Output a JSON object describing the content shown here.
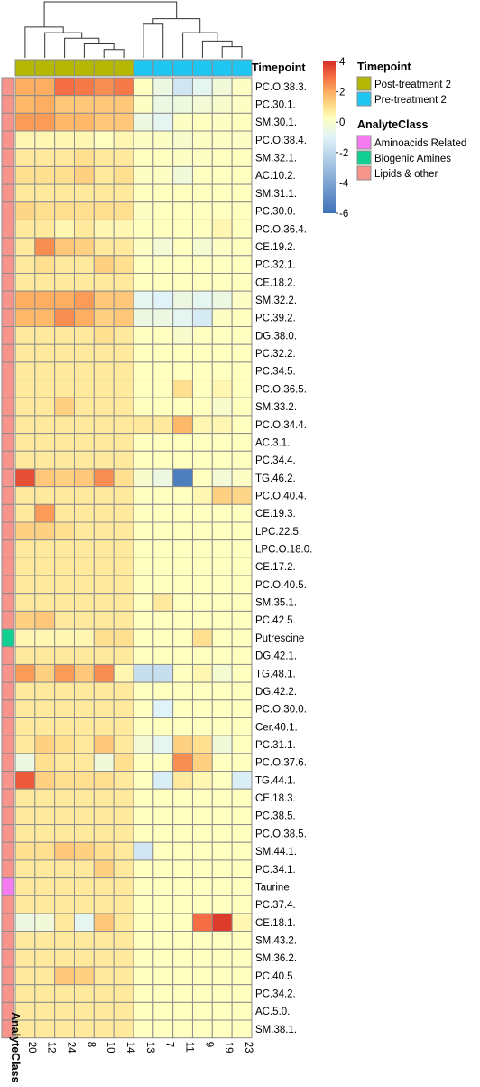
{
  "chart_data": {
    "type": "heatmap",
    "columns": [
      "20",
      "12",
      "24",
      "8",
      "10",
      "14",
      "13",
      "7",
      "11",
      "9",
      "19",
      "23"
    ],
    "rows": [
      "PC.O.38.3.",
      "PC.30.1.",
      "SM.30.1.",
      "PC.O.38.4.",
      "SM.32.1.",
      "AC.10.2.",
      "SM.31.1.",
      "PC.30.0.",
      "PC.O.36.4.",
      "CE.19.2.",
      "PC.32.1.",
      "CE.18.2.",
      "SM.32.2.",
      "PC.39.2.",
      "DG.38.0.",
      "PC.32.2.",
      "PC.34.5.",
      "PC.O.36.5.",
      "SM.33.2.",
      "PC.O.34.4.",
      "AC.3.1.",
      "PC.34.4.",
      "TG.46.2.",
      "PC.O.40.4.",
      "CE.19.3.",
      "LPC.22.5.",
      "LPC.O.18.0.",
      "CE.17.2.",
      "PC.O.40.5.",
      "SM.35.1.",
      "PC.42.5.",
      "Putrescine",
      "DG.42.1.",
      "TG.48.1.",
      "DG.42.2.",
      "PC.O.30.0.",
      "Cer.40.1.",
      "PC.31.1.",
      "PC.O.37.6.",
      "TG.44.1.",
      "CE.18.3.",
      "PC.38.5.",
      "PC.O.38.5.",
      "SM.44.1.",
      "PC.34.1.",
      "Taurine",
      "PC.37.4.",
      "CE.18.1.",
      "SM.43.2.",
      "SM.36.2.",
      "PC.40.5.",
      "PC.34.2.",
      "AC.5.0.",
      "SM.38.1."
    ],
    "values": [
      [
        2.0,
        2.0,
        3.0,
        2.8,
        2.5,
        2.8,
        0.3,
        -0.5,
        -1.5,
        -0.8,
        -0.3,
        0.2
      ],
      [
        1.8,
        2.0,
        1.5,
        1.5,
        1.5,
        1.5,
        0.2,
        -0.5,
        -0.4,
        -0.2,
        0.0,
        0.2
      ],
      [
        2.3,
        2.3,
        1.8,
        1.8,
        1.5,
        1.5,
        -0.5,
        -0.8,
        0.2,
        0.3,
        0.2,
        0.3
      ],
      [
        0.5,
        0.5,
        0.5,
        0.5,
        0.3,
        0.5,
        0.2,
        0.2,
        0.0,
        0.2,
        0.2,
        0.2
      ],
      [
        0.8,
        0.8,
        0.8,
        1.0,
        0.8,
        0.8,
        0.3,
        0.3,
        0.2,
        0.2,
        0.3,
        0.3
      ],
      [
        1.0,
        1.0,
        1.0,
        1.3,
        0.8,
        1.0,
        0.2,
        0.2,
        -0.3,
        0.3,
        0.3,
        0.3
      ],
      [
        0.8,
        0.8,
        0.8,
        0.8,
        0.8,
        0.8,
        0.3,
        0.3,
        0.3,
        0.3,
        0.3,
        0.3
      ],
      [
        1.2,
        1.0,
        1.0,
        1.0,
        1.0,
        1.0,
        0.2,
        0.3,
        0.3,
        0.3,
        0.3,
        0.3
      ],
      [
        0.8,
        0.8,
        0.5,
        0.8,
        0.5,
        0.5,
        0.3,
        0.3,
        0.3,
        0.3,
        0.5,
        0.3
      ],
      [
        0.8,
        2.5,
        1.5,
        1.3,
        0.8,
        0.8,
        0.2,
        -0.2,
        0.3,
        -0.1,
        0.2,
        0.3
      ],
      [
        0.8,
        1.0,
        0.8,
        0.8,
        1.3,
        1.0,
        0.3,
        0.3,
        0.3,
        0.3,
        0.3,
        0.3
      ],
      [
        0.8,
        0.8,
        0.8,
        0.8,
        0.8,
        0.8,
        0.3,
        0.3,
        0.3,
        0.3,
        0.3,
        0.3
      ],
      [
        2.0,
        2.0,
        2.0,
        2.3,
        1.5,
        1.5,
        -0.8,
        -1.0,
        -0.5,
        -0.8,
        -0.5,
        0.2
      ],
      [
        1.8,
        1.8,
        2.5,
        2.0,
        1.3,
        1.5,
        -0.5,
        -0.5,
        -0.8,
        -1.3,
        0.2,
        0.3
      ],
      [
        0.8,
        0.8,
        0.8,
        0.8,
        1.0,
        0.8,
        0.3,
        0.3,
        0.0,
        0.3,
        0.3,
        0.3
      ],
      [
        0.8,
        0.8,
        0.8,
        0.8,
        0.8,
        0.8,
        0.3,
        0.3,
        0.3,
        0.3,
        0.3,
        0.3
      ],
      [
        0.8,
        0.8,
        0.8,
        0.8,
        0.8,
        0.8,
        0.3,
        0.3,
        0.3,
        0.3,
        0.3,
        0.3
      ],
      [
        0.8,
        0.8,
        0.8,
        0.8,
        0.8,
        0.8,
        0.3,
        0.3,
        1.0,
        0.3,
        0.5,
        0.3
      ],
      [
        0.8,
        0.8,
        1.3,
        0.8,
        0.8,
        0.8,
        0.3,
        0.3,
        0.3,
        0.3,
        0.0,
        0.3
      ],
      [
        0.8,
        0.8,
        0.8,
        0.8,
        0.8,
        0.8,
        0.8,
        0.8,
        1.8,
        0.5,
        0.5,
        0.3
      ],
      [
        0.8,
        0.8,
        0.8,
        0.8,
        0.8,
        0.8,
        0.3,
        0.3,
        0.3,
        0.3,
        0.3,
        0.3
      ],
      [
        0.8,
        0.8,
        0.8,
        0.8,
        0.8,
        0.8,
        0.3,
        0.3,
        0.3,
        0.3,
        0.3,
        0.3
      ],
      [
        3.5,
        1.5,
        1.3,
        1.5,
        2.5,
        1.0,
        0.0,
        -0.5,
        -5.5,
        0.3,
        -0.2,
        0.2
      ],
      [
        0.8,
        0.8,
        0.8,
        0.8,
        0.8,
        0.8,
        0.3,
        0.3,
        0.3,
        0.5,
        1.3,
        1.2
      ],
      [
        0.8,
        2.3,
        0.8,
        0.8,
        0.8,
        0.8,
        0.3,
        0.3,
        0.3,
        0.3,
        0.3,
        0.3
      ],
      [
        1.3,
        1.3,
        1.0,
        0.8,
        0.8,
        0.8,
        0.3,
        0.3,
        0.3,
        0.3,
        0.3,
        0.3
      ],
      [
        0.8,
        0.8,
        0.8,
        0.8,
        0.8,
        0.8,
        0.3,
        0.3,
        0.3,
        0.3,
        0.3,
        0.3
      ],
      [
        0.8,
        0.8,
        0.8,
        0.8,
        0.8,
        0.8,
        0.3,
        0.3,
        0.3,
        0.3,
        0.3,
        0.3
      ],
      [
        0.8,
        0.8,
        0.8,
        0.8,
        0.8,
        0.8,
        0.3,
        0.3,
        0.3,
        0.3,
        0.3,
        0.3
      ],
      [
        0.8,
        0.8,
        0.8,
        0.8,
        0.8,
        0.8,
        0.3,
        0.8,
        0.3,
        0.3,
        0.3,
        0.3
      ],
      [
        1.3,
        1.5,
        0.8,
        0.8,
        0.8,
        0.8,
        0.3,
        0.3,
        0.3,
        0.3,
        0.3,
        0.3
      ],
      [
        0.5,
        0.5,
        0.5,
        0.5,
        1.0,
        1.0,
        0.3,
        0.3,
        0.3,
        1.0,
        0.3,
        0.3
      ],
      [
        0.8,
        0.8,
        0.8,
        0.8,
        0.8,
        0.8,
        0.3,
        0.3,
        0.3,
        0.3,
        0.3,
        0.3
      ],
      [
        2.3,
        1.3,
        2.3,
        1.5,
        2.5,
        0.5,
        -1.8,
        -1.8,
        0.3,
        0.5,
        -0.1,
        0.3
      ],
      [
        0.8,
        0.8,
        0.8,
        0.8,
        0.8,
        0.8,
        0.3,
        0.3,
        0.3,
        0.3,
        0.3,
        0.3
      ],
      [
        0.8,
        0.8,
        0.8,
        0.8,
        0.8,
        0.8,
        0.3,
        -1.0,
        0.3,
        0.3,
        0.3,
        0.3
      ],
      [
        0.8,
        0.8,
        0.8,
        0.8,
        0.8,
        0.8,
        0.3,
        0.3,
        0.3,
        0.3,
        0.3,
        0.3
      ],
      [
        0.8,
        1.3,
        1.0,
        0.8,
        1.5,
        0.8,
        -0.2,
        -0.8,
        1.3,
        1.0,
        -0.3,
        0.3
      ],
      [
        -0.5,
        1.0,
        0.8,
        0.8,
        -0.3,
        1.0,
        0.3,
        0.3,
        2.5,
        1.3,
        0.3,
        0.3
      ],
      [
        3.3,
        1.3,
        1.0,
        1.0,
        1.0,
        0.8,
        0.3,
        -1.2,
        0.8,
        0.5,
        0.3,
        -1.2
      ],
      [
        0.8,
        0.8,
        0.8,
        0.8,
        0.8,
        0.8,
        0.3,
        0.3,
        0.3,
        0.3,
        0.3,
        0.3
      ],
      [
        0.8,
        0.8,
        0.8,
        0.8,
        0.8,
        0.8,
        0.3,
        0.3,
        0.3,
        0.3,
        0.3,
        0.3
      ],
      [
        0.8,
        0.8,
        0.8,
        0.8,
        0.8,
        0.8,
        0.3,
        0.3,
        0.3,
        0.3,
        0.3,
        0.3
      ],
      [
        1.0,
        1.0,
        1.5,
        1.3,
        1.0,
        0.8,
        -1.5,
        0.3,
        0.3,
        0.3,
        0.3,
        0.3
      ],
      [
        0.8,
        0.8,
        0.8,
        0.8,
        1.3,
        0.8,
        0.3,
        0.3,
        0.3,
        0.3,
        0.3,
        0.3
      ],
      [
        0.8,
        0.8,
        0.8,
        0.8,
        0.8,
        0.8,
        0.3,
        0.3,
        0.3,
        0.3,
        0.3,
        0.3
      ],
      [
        0.8,
        0.8,
        0.8,
        0.8,
        0.8,
        0.8,
        0.3,
        0.3,
        0.3,
        0.3,
        0.3,
        0.3
      ],
      [
        -0.5,
        -0.3,
        0.8,
        -0.8,
        1.5,
        0.8,
        0.3,
        0.3,
        0.3,
        3.0,
        3.8,
        0.5
      ],
      [
        0.8,
        0.8,
        0.8,
        0.8,
        0.8,
        0.8,
        0.3,
        0.3,
        0.3,
        0.3,
        0.3,
        0.3
      ],
      [
        0.8,
        0.8,
        0.8,
        0.8,
        0.8,
        0.8,
        0.3,
        0.3,
        0.3,
        0.3,
        0.3,
        0.3
      ],
      [
        0.8,
        0.8,
        1.5,
        1.3,
        0.8,
        0.8,
        0.3,
        0.3,
        0.3,
        0.3,
        0.3,
        0.3
      ],
      [
        0.8,
        0.8,
        0.8,
        0.8,
        0.8,
        0.8,
        0.3,
        0.3,
        0.3,
        0.3,
        0.3,
        0.3
      ],
      [
        0.8,
        0.8,
        0.8,
        0.8,
        0.8,
        0.8,
        0.3,
        0.3,
        0.3,
        0.3,
        0.3,
        0.3
      ],
      [
        0.8,
        0.8,
        0.8,
        0.8,
        0.8,
        0.8,
        0.3,
        0.3,
        0.3,
        0.3,
        0.3,
        0.3
      ]
    ],
    "column_annotation": {
      "title": "Timepoint",
      "values": [
        "Post-treatment 2",
        "Post-treatment 2",
        "Post-treatment 2",
        "Post-treatment 2",
        "Post-treatment 2",
        "Post-treatment 2",
        "Pre-treatment 2",
        "Pre-treatment 2",
        "Pre-treatment 2",
        "Pre-treatment 2",
        "Pre-treatment 2",
        "Pre-treatment 2"
      ],
      "legend": [
        {
          "label": "Post-treatment 2",
          "color": "#B5B802"
        },
        {
          "label": "Pre-treatment 2",
          "color": "#1FC6F2"
        }
      ]
    },
    "row_annotation": {
      "title": "AnalyteClass",
      "values": [
        "Lipids & other",
        "Lipids & other",
        "Lipids & other",
        "Lipids & other",
        "Lipids & other",
        "Lipids & other",
        "Lipids & other",
        "Lipids & other",
        "Lipids & other",
        "Lipids & other",
        "Lipids & other",
        "Lipids & other",
        "Lipids & other",
        "Lipids & other",
        "Lipids & other",
        "Lipids & other",
        "Lipids & other",
        "Lipids & other",
        "Lipids & other",
        "Lipids & other",
        "Lipids & other",
        "Lipids & other",
        "Lipids & other",
        "Lipids & other",
        "Lipids & other",
        "Lipids & other",
        "Lipids & other",
        "Lipids & other",
        "Lipids & other",
        "Lipids & other",
        "Lipids & other",
        "Biogenic Amines",
        "Lipids & other",
        "Lipids & other",
        "Lipids & other",
        "Lipids & other",
        "Lipids & other",
        "Lipids & other",
        "Lipids & other",
        "Lipids & other",
        "Lipids & other",
        "Lipids & other",
        "Lipids & other",
        "Lipids & other",
        "Lipids & other",
        "Aminoacids Related",
        "Lipids & other",
        "Lipids & other",
        "Lipids & other",
        "Lipids & other",
        "Lipids & other",
        "Lipids & other",
        "Lipids & other",
        "Lipids & other"
      ],
      "legend": [
        {
          "label": "Aminoacids Related",
          "color": "#F47CF0"
        },
        {
          "label": "Biogenic Amines",
          "color": "#11CF91"
        },
        {
          "label": "Lipids & other",
          "color": "#F7948C"
        }
      ]
    },
    "color_scale": {
      "min": -6,
      "max": 4,
      "ticks": [
        4,
        2,
        0,
        -2,
        -4,
        -6
      ],
      "stops": [
        {
          "value": -6,
          "color": "#3D71B8"
        },
        {
          "value": -1,
          "color": "#E0F3F8"
        },
        {
          "value": 0.3,
          "color": "#FFFFBF"
        },
        {
          "value": 1,
          "color": "#FEE090"
        },
        {
          "value": 2,
          "color": "#FDAE61"
        },
        {
          "value": 3,
          "color": "#F46D43"
        },
        {
          "value": 4,
          "color": "#D73027"
        }
      ]
    },
    "column_tree": {
      "merges": [
        [
          -5,
          -6,
          0.15
        ],
        [
          -4,
          1,
          0.25
        ],
        [
          -3,
          2,
          0.35
        ],
        [
          -2,
          3,
          0.45
        ],
        [
          -1,
          4,
          0.55
        ],
        [
          -11,
          -12,
          0.2
        ],
        [
          -10,
          6,
          0.3
        ],
        [
          -9,
          7,
          0.45
        ],
        [
          -7,
          -8,
          0.6
        ],
        [
          8,
          9,
          0.7
        ],
        [
          5,
          10,
          1.0
        ]
      ]
    },
    "grid": "on"
  }
}
